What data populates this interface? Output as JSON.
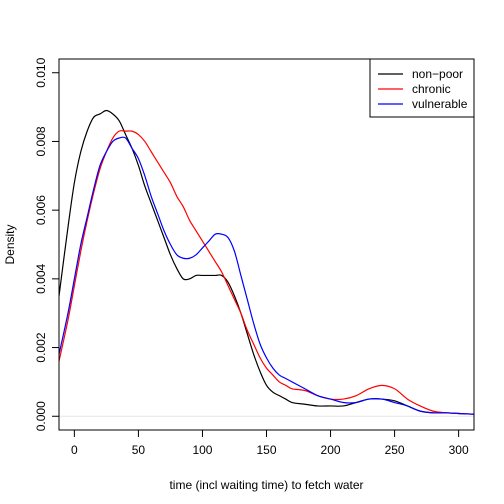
{
  "chart_data": {
    "type": "line",
    "title": "",
    "xlabel": "time (incl waiting time) to fetch water",
    "ylabel": "Density",
    "xlim": [
      -12,
      312
    ],
    "ylim": [
      -0.0004,
      0.0104
    ],
    "xticks": [
      0,
      50,
      100,
      150,
      200,
      250,
      300
    ],
    "yticks": [
      0.0,
      0.002,
      0.004,
      0.006,
      0.008,
      0.01
    ],
    "ytick_labels": [
      "0.000",
      "0.002",
      "0.004",
      "0.006",
      "0.008",
      "0.010"
    ],
    "zero_line": true,
    "legend": {
      "placement": "top-right"
    },
    "series": [
      {
        "name": "non−poor",
        "color": "#000000",
        "x": [
          -12,
          -5,
          0,
          5,
          10,
          15,
          20,
          25,
          30,
          35,
          40,
          45,
          50,
          55,
          60,
          65,
          70,
          75,
          80,
          85,
          90,
          95,
          100,
          105,
          110,
          115,
          120,
          125,
          130,
          135,
          140,
          145,
          150,
          155,
          160,
          165,
          170,
          180,
          190,
          200,
          210,
          220,
          230,
          240,
          250,
          260,
          270,
          280,
          290,
          300,
          312
        ],
        "y": [
          0.0035,
          0.0055,
          0.0068,
          0.0077,
          0.0083,
          0.0087,
          0.0088,
          0.0089,
          0.0088,
          0.0086,
          0.0082,
          0.0078,
          0.0073,
          0.0067,
          0.0062,
          0.0057,
          0.0052,
          0.0047,
          0.0043,
          0.004,
          0.004,
          0.0041,
          0.0041,
          0.0041,
          0.0041,
          0.0041,
          0.0039,
          0.0035,
          0.003,
          0.0024,
          0.0018,
          0.0013,
          0.0009,
          0.0007,
          0.0006,
          0.0005,
          0.0004,
          0.00035,
          0.0003,
          0.0003,
          0.0003,
          0.0004,
          0.0005,
          0.0005,
          0.00045,
          0.0003,
          0.00015,
          0.0001,
          0.0001,
          8e-05,
          6e-05
        ]
      },
      {
        "name": "chronic",
        "color": "#ff0000",
        "x": [
          -12,
          -5,
          0,
          5,
          10,
          15,
          20,
          25,
          30,
          35,
          40,
          45,
          50,
          55,
          60,
          65,
          70,
          75,
          80,
          85,
          90,
          95,
          100,
          105,
          110,
          115,
          120,
          125,
          130,
          135,
          140,
          145,
          150,
          155,
          160,
          165,
          170,
          180,
          190,
          200,
          210,
          220,
          230,
          240,
          250,
          260,
          270,
          280,
          290,
          300,
          312
        ],
        "y": [
          0.0016,
          0.0028,
          0.0038,
          0.0048,
          0.0057,
          0.0065,
          0.0072,
          0.0077,
          0.0081,
          0.0083,
          0.0083,
          0.0083,
          0.0082,
          0.008,
          0.0077,
          0.0074,
          0.0071,
          0.0068,
          0.0064,
          0.0061,
          0.0057,
          0.0054,
          0.0051,
          0.0048,
          0.0045,
          0.0042,
          0.0038,
          0.0034,
          0.003,
          0.0025,
          0.0021,
          0.0017,
          0.0014,
          0.0012,
          0.001,
          0.0009,
          0.0008,
          0.00075,
          0.0006,
          0.0005,
          0.0005,
          0.0006,
          0.0008,
          0.0009,
          0.0008,
          0.0005,
          0.0003,
          0.00015,
          0.0001,
          8e-05,
          6e-05
        ]
      },
      {
        "name": "vulnerable",
        "color": "#0000ff",
        "x": [
          -12,
          -5,
          0,
          5,
          10,
          15,
          20,
          25,
          30,
          35,
          40,
          45,
          50,
          55,
          60,
          65,
          70,
          75,
          80,
          85,
          90,
          95,
          100,
          105,
          110,
          115,
          120,
          125,
          130,
          135,
          140,
          145,
          150,
          155,
          160,
          165,
          170,
          180,
          190,
          200,
          210,
          220,
          230,
          240,
          250,
          260,
          270,
          280,
          290,
          300,
          312
        ],
        "y": [
          0.0018,
          0.003,
          0.004,
          0.005,
          0.0058,
          0.0066,
          0.0073,
          0.0077,
          0.008,
          0.0081,
          0.0081,
          0.0078,
          0.0075,
          0.007,
          0.0064,
          0.0059,
          0.0054,
          0.005,
          0.0047,
          0.0046,
          0.0046,
          0.0047,
          0.0049,
          0.0051,
          0.0053,
          0.0053,
          0.0052,
          0.0048,
          0.0041,
          0.0034,
          0.0027,
          0.0021,
          0.0017,
          0.0014,
          0.0012,
          0.0011,
          0.001,
          0.0008,
          0.0006,
          0.0005,
          0.0004,
          0.0004,
          0.0005,
          0.0005,
          0.0004,
          0.0003,
          0.00015,
          0.0001,
          0.0001,
          8e-05,
          6e-05
        ]
      }
    ]
  }
}
